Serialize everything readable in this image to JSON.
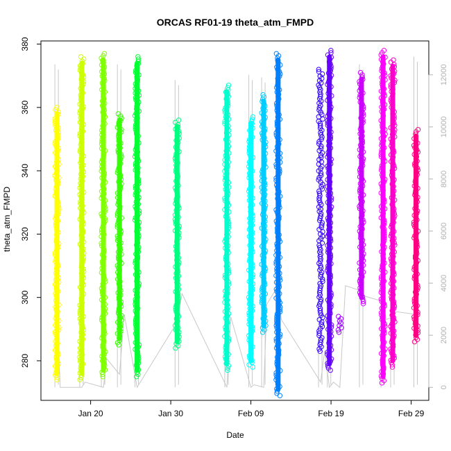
{
  "chart_data": {
    "type": "scatter",
    "title": "ORCAS RF01-19 theta_atm_FMPD",
    "xlabel": "Date",
    "ylabel": "theta_atm_FMPD",
    "ylabel_right": "",
    "x_ticks": [
      {
        "label": "Jan 20",
        "day": 20
      },
      {
        "label": "Jan 30",
        "day": 30
      },
      {
        "label": "Feb 09",
        "day": 40
      },
      {
        "label": "Feb 19",
        "day": 50
      },
      {
        "label": "Feb 29",
        "day": 60
      }
    ],
    "xlim_day": [
      13.8,
      62.2
    ],
    "ylim": [
      267.5,
      381
    ],
    "y_ticks": [
      280,
      300,
      320,
      340,
      360,
      380
    ],
    "ylim_right": [
      -500,
      13300
    ],
    "y_ticks_right": [
      0,
      2000,
      4000,
      6000,
      8000,
      10000,
      12000
    ],
    "grid": false,
    "legend": "none",
    "colors": {
      "altitude_trace": "#c8c8c8",
      "axis": "#000000",
      "right_axis": "#b0b0b0"
    },
    "series": [
      {
        "day": 15.8,
        "ymin": 274,
        "ymax": 360,
        "dense_min": 276,
        "dense_max": 358,
        "color": "#FFFF00",
        "alt_max": 12400
      },
      {
        "day": 18.9,
        "ymin": 274,
        "ymax": 376,
        "dense_min": 276,
        "dense_max": 374,
        "color": "#CCFF00",
        "alt_max": 12300
      },
      {
        "day": 21.6,
        "ymin": 275,
        "ymax": 377,
        "dense_min": 277,
        "dense_max": 375,
        "color": "#80FF00",
        "alt_max": 12500
      },
      {
        "day": 23.6,
        "ymin": 285,
        "ymax": 358,
        "dense_min": 287,
        "dense_max": 356,
        "color": "#33FF00",
        "alt_max": 12400
      },
      {
        "day": 25.8,
        "ymin": 275,
        "ymax": 376,
        "dense_min": 277,
        "dense_max": 374,
        "color": "#00FF33",
        "alt_max": 12300
      },
      {
        "day": 30.8,
        "ymin": 284,
        "ymax": 356,
        "dense_min": 286,
        "dense_max": 354,
        "color": "#00FF80",
        "alt_max": 11800
      },
      {
        "day": 37.0,
        "ymin": 277,
        "ymax": 367,
        "dense_min": 279,
        "dense_max": 365,
        "color": "#00FFCC",
        "alt_max": 11500
      },
      {
        "day": 40.0,
        "ymin": 278,
        "ymax": 357,
        "dense_min": 280,
        "dense_max": 355,
        "color": "#00FFFF",
        "alt_max": 12000
      },
      {
        "day": 41.6,
        "ymin": 289,
        "ymax": 364,
        "dense_min": 291,
        "dense_max": 362,
        "color": "#00CCFF",
        "alt_max": 11900
      },
      {
        "day": 43.4,
        "ymin": 269,
        "ymax": 377,
        "dense_min": 271,
        "dense_max": 375,
        "color": "#0080FF",
        "alt_max": 12200
      },
      {
        "day": 48.7,
        "ymin": 283,
        "ymax": 372,
        "dense_min": 0,
        "dense_max": 0,
        "color": "#3300FF",
        "alt_max": 12000
      },
      {
        "day": 49.8,
        "ymin": 277,
        "ymax": 378,
        "dense_min": 279,
        "dense_max": 376,
        "color": "#6600FF",
        "alt_max": 12500
      },
      {
        "day": 51.1,
        "ymin": 289,
        "ymax": 294,
        "dense_min": 0,
        "dense_max": 0,
        "color": "#9900FF",
        "alt_max": 0
      },
      {
        "day": 53.8,
        "ymin": 298,
        "ymax": 371,
        "dense_min": 300,
        "dense_max": 369,
        "color": "#CC00FF",
        "alt_max": 12400
      },
      {
        "day": 56.5,
        "ymin": 273,
        "ymax": 378,
        "dense_min": 275,
        "dense_max": 376,
        "color": "#FF00FF",
        "alt_max": 12600
      },
      {
        "day": 57.7,
        "ymin": 278,
        "ymax": 375,
        "dense_min": 280,
        "dense_max": 373,
        "color": "#FF00CC",
        "alt_max": 12300
      },
      {
        "day": 60.6,
        "ymin": 286,
        "ymax": 353,
        "dense_min": 288,
        "dense_max": 351,
        "color": "#FF0080",
        "alt_max": 12700
      }
    ],
    "altitude_path_days": [
      15.8,
      16.2,
      18.9,
      19.3,
      21.6,
      22.0,
      23.6,
      24.2,
      25.8,
      26.2,
      30.8,
      31.4,
      37.0,
      37.5,
      40.0,
      40.4,
      41.6,
      42.0,
      43.4,
      43.8,
      48.7,
      49.2,
      49.8,
      50.3,
      51.1,
      51.8,
      53.8,
      54.2,
      56.5,
      56.9,
      57.7,
      58.2,
      60.6,
      61.0
    ],
    "altitude_path_alts": [
      3600,
      0,
      0,
      200,
      0,
      1100,
      500,
      2800,
      0,
      200,
      2500,
      3600,
      0,
      2700,
      0,
      100,
      0,
      3200,
      3900,
      2600,
      200,
      1400,
      0,
      200,
      0,
      3900,
      3700,
      3500,
      3300,
      2600,
      2700,
      2900,
      2800,
      3000
    ]
  }
}
